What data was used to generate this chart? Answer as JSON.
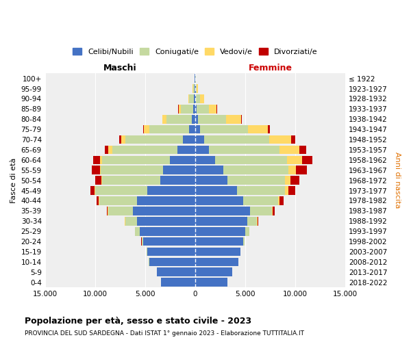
{
  "age_groups": [
    "0-4",
    "5-9",
    "10-14",
    "15-19",
    "20-24",
    "25-29",
    "30-34",
    "35-39",
    "40-44",
    "45-49",
    "50-54",
    "55-59",
    "60-64",
    "65-69",
    "70-74",
    "75-79",
    "80-84",
    "85-89",
    "90-94",
    "95-99",
    "100+"
  ],
  "birth_years": [
    "2018-2022",
    "2013-2017",
    "2008-2012",
    "2003-2007",
    "1998-2002",
    "1993-1997",
    "1988-1992",
    "1983-1987",
    "1978-1982",
    "1973-1977",
    "1968-1972",
    "1963-1967",
    "1958-1962",
    "1953-1957",
    "1948-1952",
    "1943-1947",
    "1938-1942",
    "1933-1937",
    "1928-1932",
    "1923-1927",
    "≤ 1922"
  ],
  "males": {
    "celibe": [
      3400,
      3800,
      4600,
      4800,
      5200,
      5500,
      5800,
      6200,
      5800,
      4800,
      3500,
      3200,
      2500,
      1800,
      1200,
      600,
      350,
      200,
      130,
      80,
      30
    ],
    "coniugato": [
      5,
      10,
      20,
      50,
      150,
      500,
      1200,
      2500,
      3800,
      5200,
      5800,
      6200,
      6800,
      6500,
      5800,
      4000,
      2500,
      1200,
      450,
      120,
      20
    ],
    "vedovo": [
      0,
      1,
      1,
      2,
      5,
      5,
      10,
      20,
      30,
      50,
      80,
      100,
      200,
      350,
      400,
      500,
      400,
      250,
      100,
      30,
      5
    ],
    "divorziato": [
      0,
      0,
      1,
      2,
      5,
      20,
      50,
      100,
      200,
      400,
      600,
      800,
      700,
      400,
      200,
      80,
      50,
      20,
      10,
      5,
      0
    ]
  },
  "females": {
    "nubile": [
      3200,
      3700,
      4300,
      4500,
      4800,
      5000,
      5200,
      5500,
      4800,
      4200,
      3200,
      2800,
      2000,
      1400,
      900,
      500,
      280,
      160,
      90,
      60,
      30
    ],
    "coniugata": [
      3,
      8,
      15,
      40,
      120,
      400,
      1000,
      2200,
      3500,
      4800,
      5800,
      6500,
      7200,
      7000,
      6500,
      4800,
      2800,
      1200,
      400,
      100,
      30
    ],
    "vedova": [
      0,
      0,
      1,
      2,
      5,
      15,
      40,
      80,
      150,
      300,
      500,
      800,
      1500,
      2000,
      2200,
      2000,
      1500,
      800,
      400,
      100,
      10
    ],
    "divorziata": [
      0,
      0,
      1,
      3,
      10,
      30,
      80,
      200,
      400,
      700,
      900,
      1100,
      1000,
      700,
      400,
      150,
      80,
      30,
      10,
      5,
      0
    ]
  },
  "colors": {
    "celibe": "#4472c4",
    "coniugato": "#c5d9a0",
    "vedovo": "#ffd966",
    "divorziato": "#c00000"
  },
  "legend_labels": [
    "Celibi/Nubili",
    "Coniugati/e",
    "Vedovi/e",
    "Divorziati/e"
  ],
  "xlim": 15000,
  "xticks": [
    -15000,
    -10000,
    -5000,
    0,
    5000,
    10000,
    15000
  ],
  "xticklabels": [
    "15.000",
    "10.000",
    "5.000",
    "0",
    "5.000",
    "10.000",
    "15.000"
  ],
  "title": "Popolazione per età, sesso e stato civile - 2023",
  "subtitle": "PROVINCIA DEL SUD SARDEGNA - Dati ISTAT 1° gennaio 2023 - Elaborazione TUTTITALIA.IT",
  "ylabel": "Fasce di età",
  "right_ylabel": "Anni di nascita",
  "maschi_label": "Maschi",
  "femmine_label": "Femmine",
  "bg_color": "#ffffff",
  "plot_bg_color": "#efefef"
}
